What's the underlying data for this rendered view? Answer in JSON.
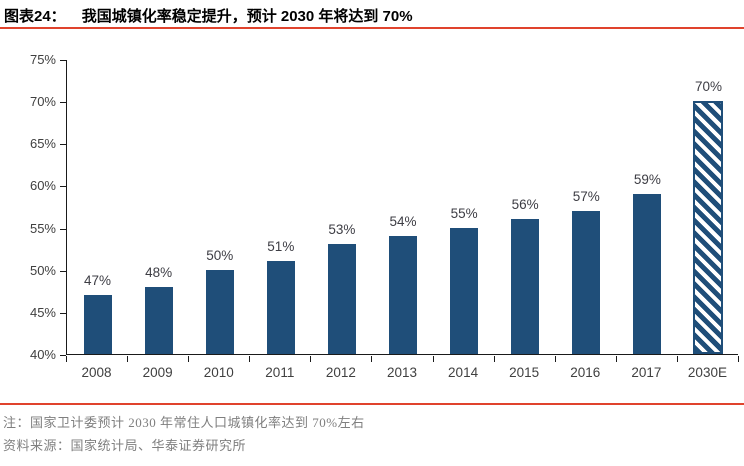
{
  "header": {
    "figure_label": "图表24：",
    "title": "我国城镇化率稳定提升，预计 2030 年将达到 70%"
  },
  "footer": {
    "note": "注：国家卫计委预计 2030 年常住人口城镇化率达到 70%左右",
    "source": "资料来源：国家统计局、华泰证券研究所"
  },
  "colors": {
    "bar": "#1f4e79",
    "accent_rule": "#e0432d",
    "axis": "#1a1a1a",
    "tick_text": "#404040",
    "note_text": "#7f7f7f"
  },
  "chart_data": {
    "type": "bar",
    "title": "我国城镇化率稳定提升，预计 2030 年将达到 70%",
    "categories": [
      "2008",
      "2009",
      "2010",
      "2011",
      "2012",
      "2013",
      "2014",
      "2015",
      "2016",
      "2017",
      "2030E"
    ],
    "values": [
      47,
      48,
      50,
      51,
      53,
      54,
      55,
      56,
      57,
      59,
      70
    ],
    "labels": [
      "47%",
      "48%",
      "50%",
      "51%",
      "53%",
      "54%",
      "55%",
      "56%",
      "57%",
      "59%",
      "70%"
    ],
    "forecast_category": "2030E",
    "forecast_style": "diagonal-hatch",
    "bar_color": "#1f4e79",
    "ylim": [
      40,
      75
    ],
    "yticks": [
      40,
      45,
      50,
      55,
      60,
      65,
      70,
      75
    ],
    "ytick_suffix": "%",
    "grid": false,
    "legend": "none",
    "xlabel": "",
    "ylabel": ""
  }
}
